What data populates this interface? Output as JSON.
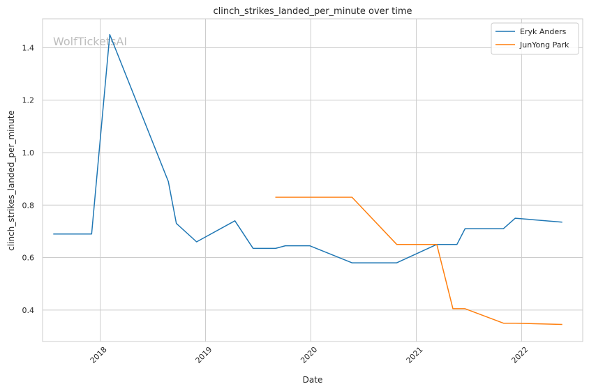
{
  "watermark": "WolfTicketsAI",
  "chart_data": {
    "type": "line",
    "title": "clinch_strikes_landed_per_minute over time",
    "xlabel": "Date",
    "ylabel": "clinch_strikes_landed_per_minute",
    "xlim": [
      "2017-06-15",
      "2022-08-01"
    ],
    "ylim": [
      0.28,
      1.51
    ],
    "x_ticks": [
      "2018",
      "2019",
      "2020",
      "2021",
      "2022"
    ],
    "y_ticks": [
      "0.4",
      "0.6",
      "0.8",
      "1.0",
      "1.2",
      "1.4"
    ],
    "grid": true,
    "legend_position": "top-right",
    "series": [
      {
        "name": "Eryk Anders",
        "color": "#1f77b4",
        "points": [
          [
            "2017-07-22",
            0.69
          ],
          [
            "2017-12-02",
            0.69
          ],
          [
            "2018-02-03",
            1.45
          ],
          [
            "2018-08-25",
            0.89
          ],
          [
            "2018-09-22",
            0.73
          ],
          [
            "2018-12-01",
            0.66
          ],
          [
            "2019-04-13",
            0.74
          ],
          [
            "2019-06-15",
            0.635
          ],
          [
            "2019-09-01",
            0.635
          ],
          [
            "2019-10-05",
            0.645
          ],
          [
            "2019-12-28",
            0.645
          ],
          [
            "2020-05-23",
            0.58
          ],
          [
            "2020-10-25",
            0.58
          ],
          [
            "2021-03-13",
            0.65
          ],
          [
            "2021-05-22",
            0.65
          ],
          [
            "2021-06-19",
            0.71
          ],
          [
            "2021-10-30",
            0.71
          ],
          [
            "2021-12-10",
            0.75
          ],
          [
            "2022-05-22",
            0.735
          ]
        ]
      },
      {
        "name": "JunYong Park",
        "color": "#ff7f0e",
        "points": [
          [
            "2019-08-31",
            0.83
          ],
          [
            "2020-05-23",
            0.83
          ],
          [
            "2020-10-25",
            0.65
          ],
          [
            "2021-03-13",
            0.65
          ],
          [
            "2021-05-08",
            0.405
          ],
          [
            "2021-06-19",
            0.405
          ],
          [
            "2021-10-30",
            0.35
          ],
          [
            "2021-12-10",
            0.35
          ],
          [
            "2022-05-22",
            0.345
          ]
        ]
      }
    ]
  }
}
